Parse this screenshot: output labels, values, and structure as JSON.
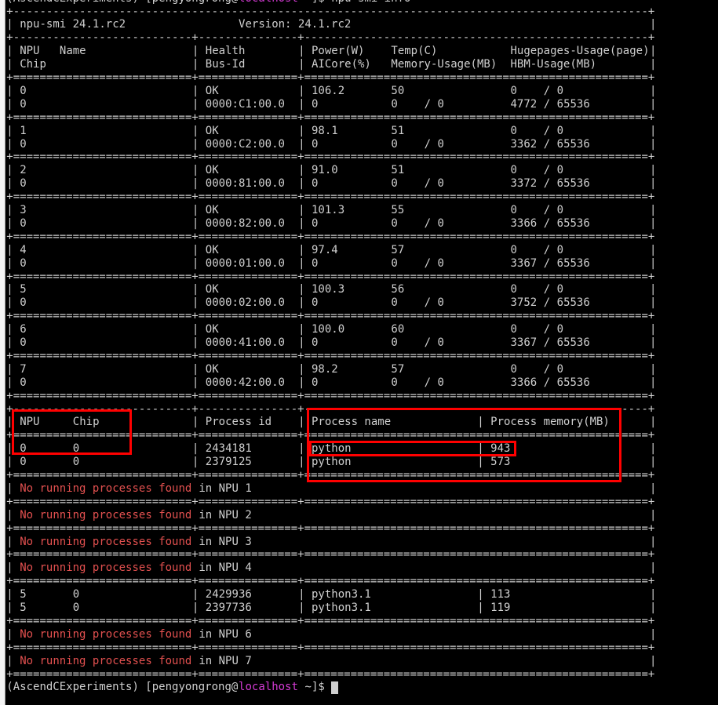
{
  "prompt": {
    "env": "(AscendCExperiments)",
    "user": "[pengyongrong@",
    "host": "localhost",
    "path": " ~]$",
    "command": "npu-smi info"
  },
  "header": {
    "title": "npu-smi 24.1.rc2",
    "version": "Version: 24.1.rc2"
  },
  "columns": {
    "row1": [
      "NPU",
      "Name",
      "Health",
      "Power(W)",
      "Temp(C)",
      "Hugepages-Usage(page)"
    ],
    "row2": [
      "Chip",
      "Bus-Id",
      "AICore(%)",
      "Memory-Usage(MB)",
      "HBM-Usage(MB)"
    ]
  },
  "npus": [
    {
      "npu": "0",
      "chip": "0",
      "health": "OK",
      "bus_id": "0000:C1:00.0",
      "power": "106.2",
      "aicore": "0",
      "temp": "50",
      "mem_used": "0",
      "mem_total": "0",
      "huge_used": "0",
      "huge_total": "0",
      "hbm_used": "4772",
      "hbm_total": "65536"
    },
    {
      "npu": "1",
      "chip": "0",
      "health": "OK",
      "bus_id": "0000:C2:00.0",
      "power": "98.1",
      "aicore": "0",
      "temp": "51",
      "mem_used": "0",
      "mem_total": "0",
      "huge_used": "0",
      "huge_total": "0",
      "hbm_used": "3362",
      "hbm_total": "65536"
    },
    {
      "npu": "2",
      "chip": "0",
      "health": "OK",
      "bus_id": "0000:81:00.0",
      "power": "91.0",
      "aicore": "0",
      "temp": "51",
      "mem_used": "0",
      "mem_total": "0",
      "huge_used": "0",
      "huge_total": "0",
      "hbm_used": "3372",
      "hbm_total": "65536"
    },
    {
      "npu": "3",
      "chip": "0",
      "health": "OK",
      "bus_id": "0000:82:00.0",
      "power": "101.3",
      "aicore": "0",
      "temp": "55",
      "mem_used": "0",
      "mem_total": "0",
      "huge_used": "0",
      "huge_total": "0",
      "hbm_used": "3366",
      "hbm_total": "65536"
    },
    {
      "npu": "4",
      "chip": "0",
      "health": "OK",
      "bus_id": "0000:01:00.0",
      "power": "97.4",
      "aicore": "0",
      "temp": "57",
      "mem_used": "0",
      "mem_total": "0",
      "huge_used": "0",
      "huge_total": "0",
      "hbm_used": "3367",
      "hbm_total": "65536"
    },
    {
      "npu": "5",
      "chip": "0",
      "health": "OK",
      "bus_id": "0000:02:00.0",
      "power": "100.3",
      "aicore": "0",
      "temp": "56",
      "mem_used": "0",
      "mem_total": "0",
      "huge_used": "0",
      "huge_total": "0",
      "hbm_used": "3752",
      "hbm_total": "65536"
    },
    {
      "npu": "6",
      "chip": "0",
      "health": "OK",
      "bus_id": "0000:41:00.0",
      "power": "100.0",
      "aicore": "0",
      "temp": "60",
      "mem_used": "0",
      "mem_total": "0",
      "huge_used": "0",
      "huge_total": "0",
      "hbm_used": "3367",
      "hbm_total": "65536"
    },
    {
      "npu": "7",
      "chip": "0",
      "health": "OK",
      "bus_id": "0000:42:00.0",
      "power": "98.2",
      "aicore": "0",
      "temp": "57",
      "mem_used": "0",
      "mem_total": "0",
      "huge_used": "0",
      "huge_total": "0",
      "hbm_used": "3366",
      "hbm_total": "65536"
    }
  ],
  "process_columns": [
    "NPU",
    "Chip",
    "Process id",
    "Process name",
    "Process memory(MB)"
  ],
  "no_process_text": "No running processes found",
  "in_npu_text": "in NPU",
  "processes": [
    {
      "npu": "0",
      "rows": [
        {
          "npu": "0",
          "chip": "0",
          "pid": "2434181",
          "name": "python",
          "memory": "943"
        },
        {
          "npu": "0",
          "chip": "0",
          "pid": "2379125",
          "name": "python",
          "memory": "573"
        }
      ]
    },
    {
      "npu": "1",
      "rows": []
    },
    {
      "npu": "2",
      "rows": []
    },
    {
      "npu": "3",
      "rows": []
    },
    {
      "npu": "4",
      "rows": []
    },
    {
      "npu": "5",
      "rows": [
        {
          "npu": "5",
          "chip": "0",
          "pid": "2429936",
          "name": "python3.1",
          "memory": "113"
        },
        {
          "npu": "5",
          "chip": "0",
          "pid": "2397736",
          "name": "python3.1",
          "memory": "119"
        }
      ]
    },
    {
      "npu": "6",
      "rows": []
    },
    {
      "npu": "7",
      "rows": []
    }
  ],
  "colors": {
    "text": "#cfcfcf",
    "error": "#e2504f",
    "host": "#d43bd4",
    "annotation": "#ff0000",
    "background": "#000000"
  }
}
